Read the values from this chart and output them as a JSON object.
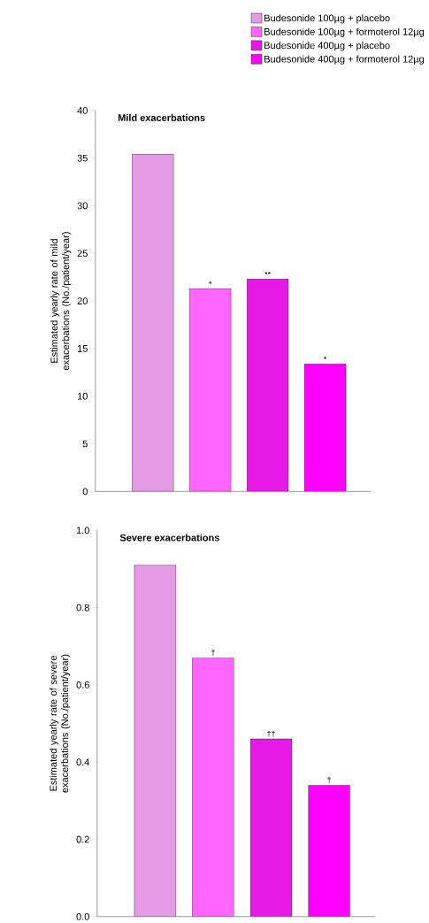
{
  "chart_data": [
    {
      "type": "bar",
      "title": "Mild exacerbations",
      "ylabel": "Estimated yearly rate of mild exacerbations (No./patient/year)",
      "categories": [
        null,
        null,
        null,
        null
      ],
      "ylim": [
        0,
        40
      ],
      "yticks": [
        0,
        5,
        10,
        15,
        20,
        25,
        30,
        35,
        40
      ],
      "legend": "top right",
      "series": [
        {
          "name": "Budesonide 100µg + placebo",
          "color": "#e59ae5",
          "values": [
            35.4,
            null,
            null,
            null
          ]
        },
        {
          "name": "Budesonide 100µg + formoterol 12µg",
          "color": "#ff66ff",
          "values": [
            null,
            21.3,
            null,
            null
          ],
          "value_labels": [
            null,
            "*",
            null,
            null
          ]
        },
        {
          "name": "Budesonide 400µg + placebo",
          "color": "#e619e6",
          "values": [
            null,
            null,
            22.3,
            null
          ],
          "value_labels": [
            null,
            null,
            "**",
            null
          ]
        },
        {
          "name": "Budesonide 400µg + formoterol 12µg",
          "color": "#ff00ff",
          "values": [
            null,
            null,
            null,
            13.4
          ],
          "value_labels": [
            null,
            null,
            null,
            "*"
          ]
        }
      ]
    },
    {
      "type": "bar",
      "title": "Severe exacerbations",
      "ylabel": "Estimated yearly rate of severe exacerbations (No./patient/year)",
      "categories": [
        null,
        null,
        null,
        null
      ],
      "ylim": [
        0,
        1
      ],
      "yticks": [
        {
          "value": 0,
          "label": "0.0"
        },
        0.2,
        0.4,
        0.6,
        0.8,
        {
          "value": 1,
          "label": "1.0"
        }
      ],
      "series": [
        {
          "color": "#e59ae5",
          "values": [
            0.91,
            null,
            null,
            null
          ]
        },
        {
          "color": "#ff66ff",
          "values": [
            null,
            0.67,
            null,
            null
          ],
          "value_labels": [
            null,
            "†",
            null,
            null
          ]
        },
        {
          "color": "#e619e6",
          "values": [
            null,
            null,
            0.46,
            null
          ],
          "value_labels": [
            null,
            null,
            "††",
            null
          ]
        },
        {
          "color": "#ff00ff",
          "values": [
            null,
            null,
            null,
            0.34
          ],
          "value_labels": [
            null,
            null,
            null,
            "†"
          ]
        }
      ]
    }
  ]
}
